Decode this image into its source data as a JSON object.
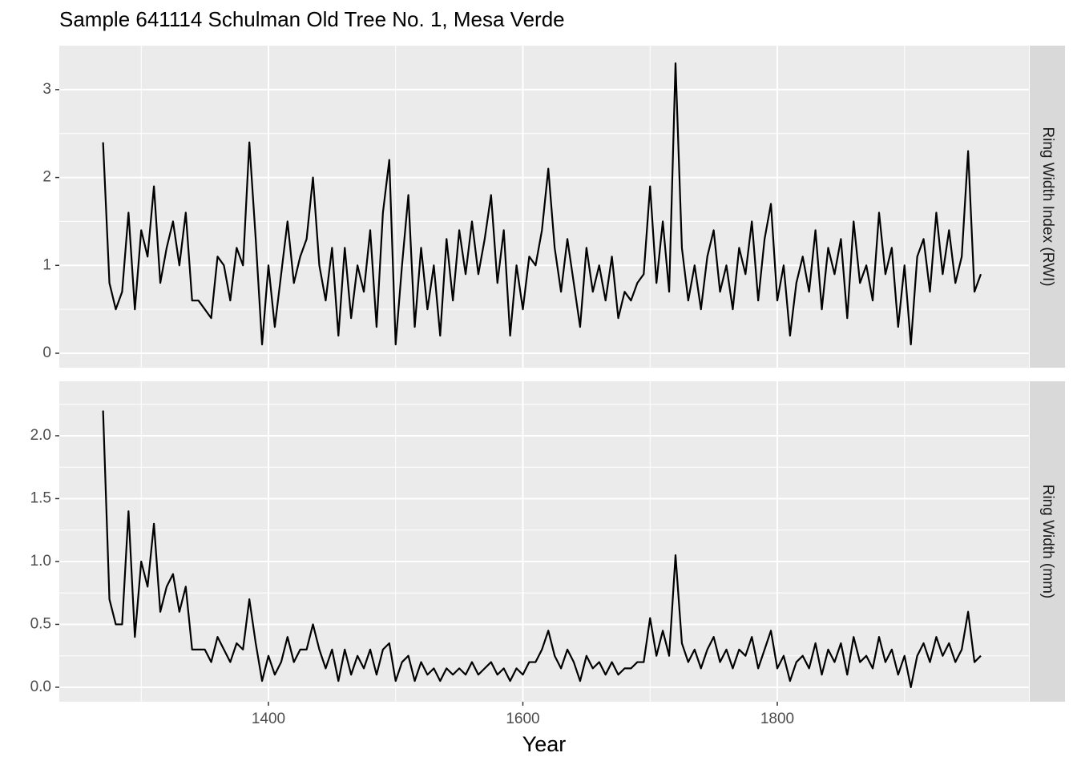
{
  "chart_data": {
    "type": "line",
    "title": "Sample 641114 Schulman Old Tree No. 1, Mesa Verde",
    "x_label": "Year",
    "xlim": [
      1235.6,
      1997.8
    ],
    "xticks": [
      1400,
      1600,
      1800
    ],
    "x_minor_ticks": [
      1300,
      1500,
      1700,
      1900
    ],
    "grid": true,
    "x": [
      1270,
      1275,
      1280,
      1285,
      1290,
      1295,
      1300,
      1305,
      1310,
      1315,
      1320,
      1325,
      1330,
      1335,
      1340,
      1345,
      1350,
      1355,
      1360,
      1365,
      1370,
      1375,
      1380,
      1385,
      1390,
      1395,
      1400,
      1405,
      1410,
      1415,
      1420,
      1425,
      1430,
      1435,
      1440,
      1445,
      1450,
      1455,
      1460,
      1465,
      1470,
      1475,
      1480,
      1485,
      1490,
      1495,
      1500,
      1505,
      1510,
      1515,
      1520,
      1525,
      1530,
      1535,
      1540,
      1545,
      1550,
      1555,
      1560,
      1565,
      1570,
      1575,
      1580,
      1585,
      1590,
      1595,
      1600,
      1605,
      1610,
      1615,
      1620,
      1625,
      1630,
      1635,
      1640,
      1645,
      1650,
      1655,
      1660,
      1665,
      1670,
      1675,
      1680,
      1685,
      1690,
      1695,
      1700,
      1705,
      1710,
      1715,
      1720,
      1725,
      1730,
      1735,
      1740,
      1745,
      1750,
      1755,
      1760,
      1765,
      1770,
      1775,
      1780,
      1785,
      1790,
      1795,
      1800,
      1805,
      1810,
      1815,
      1820,
      1825,
      1830,
      1835,
      1840,
      1845,
      1850,
      1855,
      1860,
      1865,
      1870,
      1875,
      1880,
      1885,
      1890,
      1895,
      1900,
      1905,
      1910,
      1915,
      1920,
      1925,
      1930,
      1935,
      1940,
      1945,
      1950,
      1955,
      1960
    ],
    "panels": [
      {
        "strip": "Ring Width Index (RWI)",
        "ylim": [
          -0.164,
          3.5
        ],
        "yticks": [
          0,
          1,
          2,
          3
        ],
        "y_minor_ticks": [
          0.5,
          1.5,
          2.5
        ],
        "series": [
          {
            "color": "#000000",
            "values": [
              2.4,
              0.8,
              0.5,
              0.7,
              1.6,
              0.5,
              1.4,
              1.1,
              1.9,
              0.8,
              1.2,
              1.5,
              1.0,
              1.6,
              0.6,
              0.6,
              0.5,
              0.4,
              1.1,
              1.0,
              0.6,
              1.2,
              1.0,
              2.4,
              1.3,
              0.1,
              1.0,
              0.3,
              0.9,
              1.5,
              0.8,
              1.1,
              1.3,
              2.0,
              1.0,
              0.6,
              1.2,
              0.2,
              1.2,
              0.4,
              1.0,
              0.7,
              1.4,
              0.3,
              1.6,
              2.2,
              0.1,
              1.0,
              1.8,
              0.3,
              1.2,
              0.5,
              1.0,
              0.2,
              1.3,
              0.6,
              1.4,
              0.9,
              1.5,
              0.9,
              1.3,
              1.8,
              0.8,
              1.4,
              0.2,
              1.0,
              0.5,
              1.1,
              1.0,
              1.4,
              2.1,
              1.2,
              0.7,
              1.3,
              0.8,
              0.3,
              1.2,
              0.7,
              1.0,
              0.6,
              1.1,
              0.4,
              0.7,
              0.6,
              0.8,
              0.9,
              1.9,
              0.8,
              1.5,
              0.7,
              3.3,
              1.2,
              0.6,
              1.0,
              0.5,
              1.1,
              1.4,
              0.7,
              1.0,
              0.5,
              1.2,
              0.9,
              1.5,
              0.6,
              1.3,
              1.7,
              0.6,
              1.0,
              0.2,
              0.8,
              1.1,
              0.7,
              1.4,
              0.5,
              1.2,
              0.9,
              1.3,
              0.4,
              1.5,
              0.8,
              1.0,
              0.6,
              1.6,
              0.9,
              1.2,
              0.3,
              1.0,
              0.1,
              1.1,
              1.3,
              0.7,
              1.6,
              0.9,
              1.4,
              0.8,
              1.1,
              2.3,
              0.7,
              0.9
            ]
          }
        ]
      },
      {
        "strip": "Ring Width (mm)",
        "ylim": [
          -0.115,
          2.433
        ],
        "yticks": [
          {
            "value": 0,
            "label": "0.0"
          },
          {
            "value": 0.5,
            "label": "0.5"
          },
          {
            "value": 1,
            "label": "1.0"
          },
          {
            "value": 1.5,
            "label": "1.5"
          },
          {
            "value": 2,
            "label": "2.0"
          }
        ],
        "y_minor_ticks": [
          0.25,
          0.75,
          1.25,
          1.75,
          2.25
        ],
        "series": [
          {
            "color": "#000000",
            "values": [
              2.2,
              0.7,
              0.5,
              0.5,
              1.4,
              0.4,
              1.0,
              0.8,
              1.3,
              0.6,
              0.8,
              0.9,
              0.6,
              0.8,
              0.3,
              0.3,
              0.3,
              0.2,
              0.4,
              0.3,
              0.2,
              0.35,
              0.3,
              0.7,
              0.35,
              0.05,
              0.25,
              0.1,
              0.2,
              0.4,
              0.2,
              0.3,
              0.3,
              0.5,
              0.3,
              0.15,
              0.3,
              0.05,
              0.3,
              0.1,
              0.25,
              0.15,
              0.3,
              0.1,
              0.3,
              0.35,
              0.05,
              0.2,
              0.25,
              0.05,
              0.2,
              0.1,
              0.15,
              0.05,
              0.15,
              0.1,
              0.15,
              0.1,
              0.2,
              0.1,
              0.15,
              0.2,
              0.1,
              0.15,
              0.05,
              0.15,
              0.1,
              0.2,
              0.2,
              0.3,
              0.45,
              0.25,
              0.15,
              0.3,
              0.2,
              0.05,
              0.25,
              0.15,
              0.2,
              0.1,
              0.2,
              0.1,
              0.15,
              0.15,
              0.2,
              0.2,
              0.55,
              0.25,
              0.45,
              0.25,
              1.05,
              0.35,
              0.2,
              0.3,
              0.15,
              0.3,
              0.4,
              0.2,
              0.3,
              0.15,
              0.3,
              0.25,
              0.4,
              0.15,
              0.3,
              0.45,
              0.15,
              0.25,
              0.05,
              0.2,
              0.25,
              0.15,
              0.35,
              0.1,
              0.3,
              0.2,
              0.35,
              0.1,
              0.4,
              0.2,
              0.25,
              0.15,
              0.4,
              0.2,
              0.3,
              0.1,
              0.25,
              0.0,
              0.25,
              0.35,
              0.2,
              0.4,
              0.25,
              0.35,
              0.2,
              0.3,
              0.6,
              0.2,
              0.25
            ]
          }
        ]
      }
    ]
  }
}
